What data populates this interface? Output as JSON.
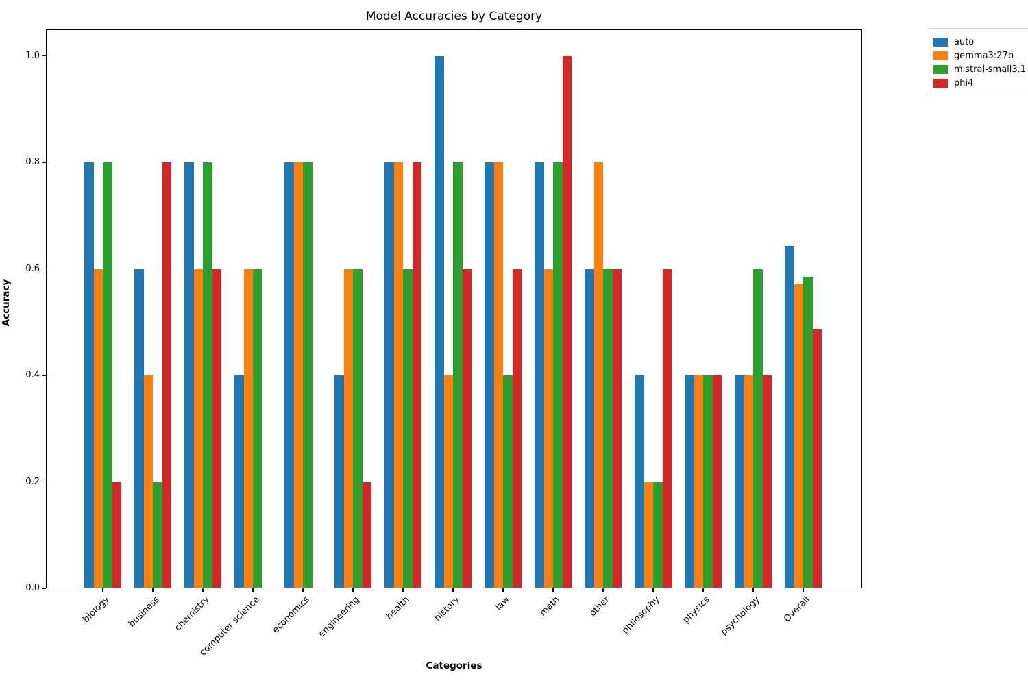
{
  "chart_data": {
    "type": "bar",
    "title": "Model Accuracies by Category",
    "xlabel": "Categories",
    "ylabel": "Accuracy",
    "categories": [
      "biology",
      "business",
      "chemistry",
      "computer science",
      "economics",
      "engineering",
      "health",
      "history",
      "law",
      "math",
      "other",
      "philosophy",
      "physics",
      "psychology",
      "Overall"
    ],
    "series": [
      {
        "name": "auto",
        "color": "#1f77b4",
        "values": [
          0.8,
          0.6,
          0.8,
          0.4,
          0.8,
          0.4,
          0.8,
          1.0,
          0.8,
          0.8,
          0.6,
          0.4,
          0.4,
          0.4,
          0.643
        ]
      },
      {
        "name": "gemma3:27b",
        "color": "#ff7f0e",
        "values": [
          0.6,
          0.4,
          0.6,
          0.6,
          0.8,
          0.6,
          0.8,
          0.4,
          0.8,
          0.6,
          0.8,
          0.2,
          0.4,
          0.4,
          0.571
        ]
      },
      {
        "name": "mistral-small3.1",
        "color": "#2ca02c",
        "values": [
          0.8,
          0.2,
          0.8,
          0.6,
          0.8,
          0.6,
          0.6,
          0.8,
          0.4,
          0.8,
          0.6,
          0.2,
          0.4,
          0.6,
          0.586
        ]
      },
      {
        "name": "phi4",
        "color": "#d62728",
        "values": [
          0.2,
          0.8,
          0.6,
          0.0,
          0.0,
          0.2,
          0.8,
          0.6,
          0.6,
          1.0,
          0.6,
          0.6,
          0.4,
          0.4,
          0.486
        ]
      }
    ],
    "yticks": [
      "0.0",
      "0.2",
      "0.4",
      "0.6",
      "0.8",
      "1.0"
    ],
    "ylim": [
      0,
      1.05
    ],
    "grid": false,
    "legend_position": "upper-right-outside"
  }
}
